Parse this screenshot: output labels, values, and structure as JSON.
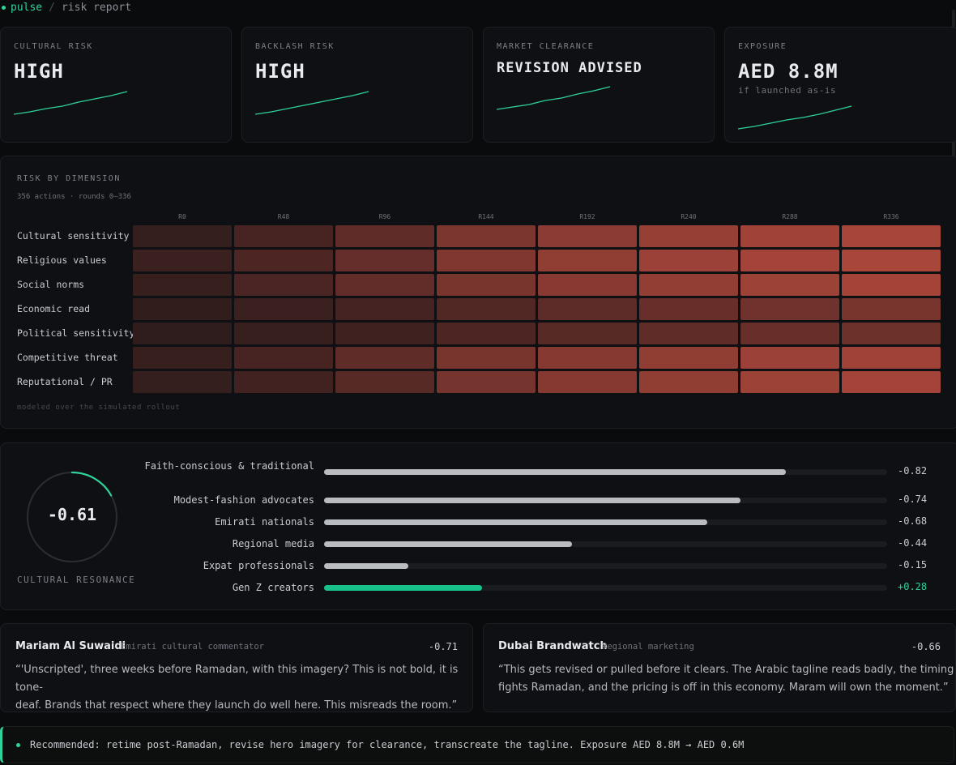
{
  "breadcrumb": {
    "app": "pulse",
    "separator": "/",
    "page": "risk report"
  },
  "kpis": [
    {
      "label": "CULTURAL RISK",
      "value": "HIGH",
      "sub": ""
    },
    {
      "label": "BACKLASH RISK",
      "value": "HIGH",
      "sub": ""
    },
    {
      "label": "MARKET CLEARANCE",
      "value": "REVISION ADVISED",
      "sub": ""
    },
    {
      "label": "EXPOSURE",
      "value": "AED 8.8M",
      "sub": "if launched as-is"
    }
  ],
  "heatmap": {
    "title": "RISK BY DIMENSION",
    "subtitle": "356 actions · rounds 0–336",
    "footnote": "modeled over the simulated rollout",
    "columns": [
      "R0",
      "R48",
      "R96",
      "R144",
      "R192",
      "R240",
      "R288",
      "R336"
    ],
    "rows": [
      "Cultural sensitivity",
      "Religious values",
      "Social norms",
      "Economic read",
      "Political sensitivity",
      "Competitive threat",
      "Reputational / PR"
    ],
    "intensity": [
      [
        0.08,
        0.22,
        0.4,
        0.6,
        0.72,
        0.8,
        0.88,
        0.93
      ],
      [
        0.12,
        0.26,
        0.44,
        0.64,
        0.76,
        0.84,
        0.9,
        0.95
      ],
      [
        0.1,
        0.24,
        0.42,
        0.58,
        0.7,
        0.78,
        0.86,
        0.91
      ],
      [
        0.06,
        0.12,
        0.2,
        0.3,
        0.38,
        0.46,
        0.52,
        0.58
      ],
      [
        0.04,
        0.1,
        0.16,
        0.26,
        0.34,
        0.4,
        0.46,
        0.5
      ],
      [
        0.1,
        0.22,
        0.4,
        0.58,
        0.68,
        0.76,
        0.84,
        0.88
      ],
      [
        0.08,
        0.18,
        0.34,
        0.56,
        0.68,
        0.76,
        0.86,
        0.9
      ]
    ],
    "colors": {
      "low": "#2a1a1b",
      "high": "#b0483c"
    }
  },
  "resonance": {
    "score": "-0.61",
    "score_value": -0.61,
    "label": "CULTURAL RESONANCE",
    "segments": [
      {
        "name": "Faith-conscious & traditional",
        "value": -0.82,
        "display": "-0.82"
      },
      {
        "name": "Modest-fashion advocates",
        "value": -0.74,
        "display": "-0.74"
      },
      {
        "name": "Emirati nationals",
        "value": -0.68,
        "display": "-0.68"
      },
      {
        "name": "Regional media",
        "value": -0.44,
        "display": "-0.44"
      },
      {
        "name": "Expat professionals",
        "value": -0.15,
        "display": "-0.15"
      },
      {
        "name": "Gen Z creators",
        "value": 0.28,
        "display": "+0.28"
      }
    ]
  },
  "quotes": [
    {
      "name": "Mariam Al Suwaidi",
      "role": "Emirati cultural commentator",
      "score": "-0.71",
      "lines": [
        "“'Unscripted', three weeks before Ramadan, with this imagery? This is not bold, it is tone-",
        "deaf. Brands that respect where they launch do well here. This misreads the room.”"
      ]
    },
    {
      "name": "Dubai Brandwatch",
      "role": "Regional marketing",
      "score": "-0.66",
      "lines": [
        "“This gets revised or pulled before it clears. The Arabic tagline reads badly, the timing",
        "fights Ramadan, and the pricing is off in this economy. Maram will own the moment.”"
      ]
    }
  ],
  "recommendation": "Recommended: retime post-Ramadan, revise hero imagery for clearance, transcreate the tagline. Exposure AED 8.8M → AED 0.6M",
  "accent": "#2fd39a"
}
